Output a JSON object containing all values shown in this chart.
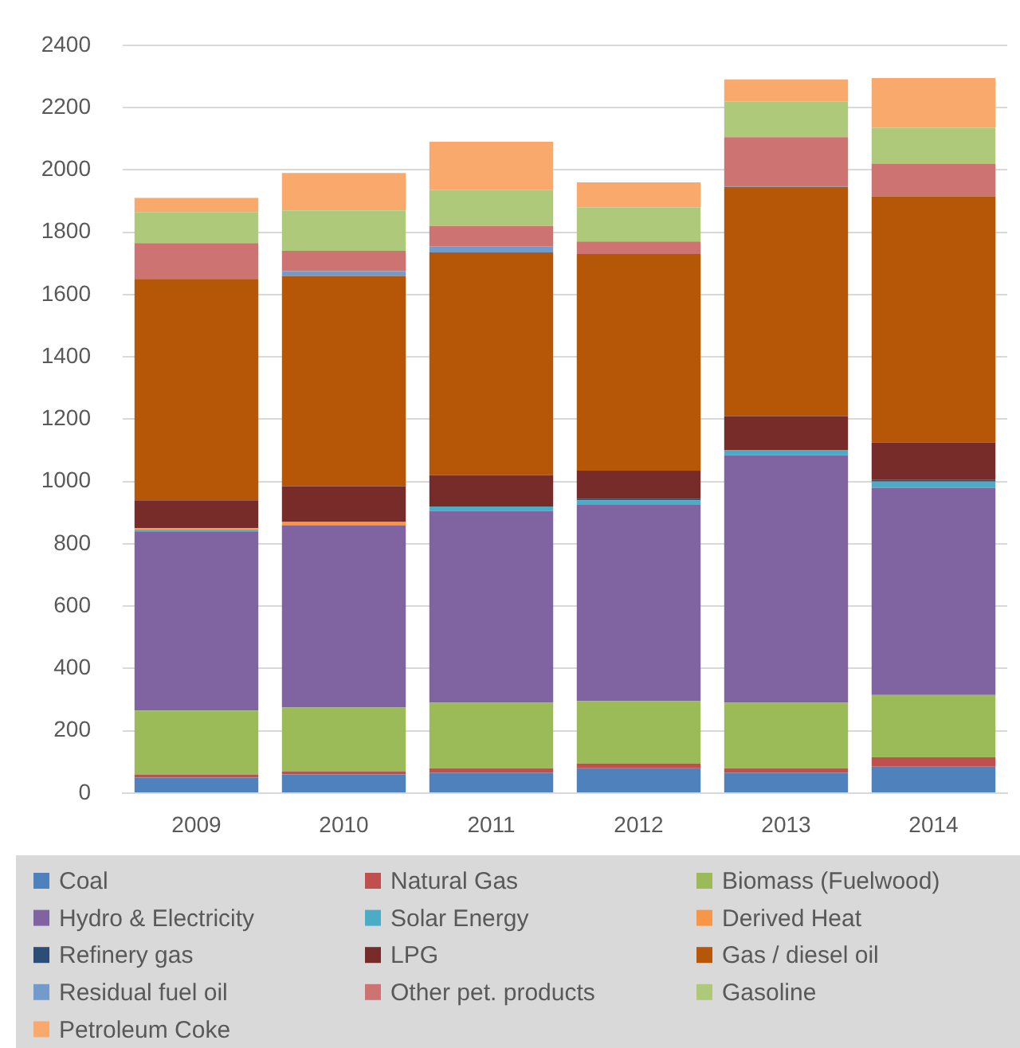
{
  "chart_data": {
    "type": "bar",
    "stacked": true,
    "categories": [
      "2009",
      "2010",
      "2011",
      "2012",
      "2013",
      "2014"
    ],
    "series": [
      {
        "name": "Coal",
        "color": "#4f81bd",
        "values": [
          50,
          60,
          65,
          80,
          65,
          85
        ]
      },
      {
        "name": "Natural Gas",
        "color": "#c0504d",
        "values": [
          10,
          10,
          15,
          15,
          15,
          30
        ]
      },
      {
        "name": "Biomass (Fuelwood)",
        "color": "#9bbb59",
        "values": [
          205,
          205,
          210,
          200,
          210,
          200
        ]
      },
      {
        "name": "Hydro & Electricity",
        "color": "#8064a2",
        "values": [
          575,
          585,
          615,
          630,
          795,
          665
        ]
      },
      {
        "name": "Solar Energy",
        "color": "#4bacc6",
        "values": [
          5,
          0,
          15,
          15,
          15,
          20
        ]
      },
      {
        "name": "Derived Heat",
        "color": "#f79646",
        "values": [
          5,
          10,
          0,
          0,
          0,
          0
        ]
      },
      {
        "name": "Refinery gas",
        "color": "#2c4d75",
        "values": [
          0,
          0,
          0,
          5,
          0,
          5
        ]
      },
      {
        "name": "LPG",
        "color": "#772c2a",
        "values": [
          90,
          115,
          100,
          90,
          110,
          120
        ]
      },
      {
        "name": "Gas / diesel oil",
        "color": "#b65708",
        "values": [
          710,
          675,
          715,
          695,
          735,
          790
        ]
      },
      {
        "name": "Residual fuel oil",
        "color": "#729aca",
        "values": [
          0,
          15,
          20,
          0,
          5,
          0
        ]
      },
      {
        "name": "Other pet. products",
        "color": "#cd7371",
        "values": [
          115,
          65,
          65,
          40,
          155,
          105
        ]
      },
      {
        "name": "Gasoline",
        "color": "#afc97a",
        "values": [
          100,
          130,
          115,
          110,
          115,
          115
        ]
      },
      {
        "name": "Petroleum Coke",
        "color": "#f8a96b",
        "values": [
          45,
          120,
          155,
          80,
          70,
          160
        ]
      }
    ],
    "ylim": [
      0,
      2400
    ],
    "yticks": [
      0,
      200,
      400,
      600,
      800,
      1000,
      1200,
      1400,
      1600,
      1800,
      2000,
      2200,
      2400
    ],
    "grid": "y",
    "legend": "bottom"
  }
}
